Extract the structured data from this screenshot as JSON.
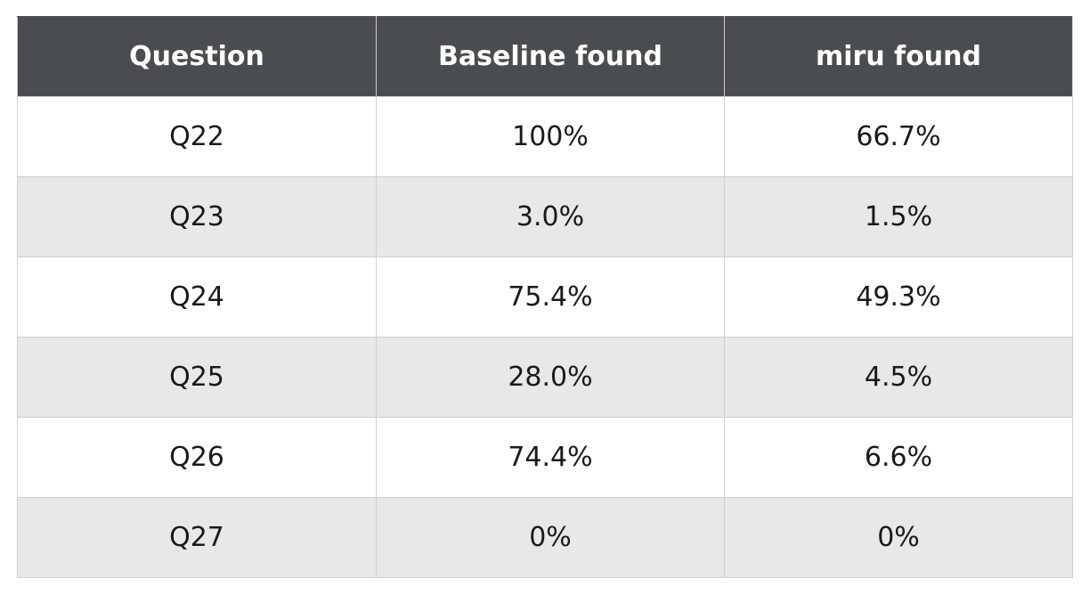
{
  "table": {
    "headers": {
      "question": "Question",
      "baseline": "Baseline found",
      "miru": "miru found"
    },
    "rows": [
      {
        "question": "Q22",
        "baseline": "100%",
        "miru": "66.7%"
      },
      {
        "question": "Q23",
        "baseline": "3.0%",
        "miru": "1.5%"
      },
      {
        "question": "Q24",
        "baseline": "75.4%",
        "miru": "49.3%"
      },
      {
        "question": "Q25",
        "baseline": "28.0%",
        "miru": "4.5%"
      },
      {
        "question": "Q26",
        "baseline": "74.4%",
        "miru": "6.6%"
      },
      {
        "question": "Q27",
        "baseline": "0%",
        "miru": "0%"
      }
    ]
  },
  "colors": {
    "header_background": "#4a4d50",
    "header_text": "#ffffff",
    "row_alt_background": "#e8e8e8",
    "grid_line": "#cfcfcf"
  }
}
